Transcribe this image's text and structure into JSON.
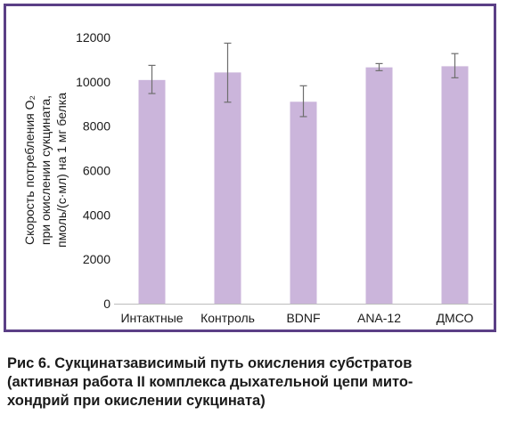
{
  "chart_data": {
    "type": "bar",
    "categories": [
      "Интактные",
      "Контроль",
      "BDNF",
      "ANA-12",
      "ДМСО"
    ],
    "values": [
      10080,
      10420,
      9100,
      10650,
      10700
    ],
    "error_low": [
      9470,
      9080,
      8430,
      10500,
      10180
    ],
    "error_high": [
      10740,
      11740,
      9820,
      10820,
      11270
    ],
    "ylim": [
      0,
      12000
    ],
    "yticks": [
      0,
      2000,
      4000,
      6000,
      8000,
      10000,
      12000
    ],
    "ytick_labels": [
      "0",
      "2000",
      "4000",
      "6000",
      "8000",
      "10000",
      "12000"
    ],
    "ylabel_lines": [
      "Скорость потребления O₂",
      "при окислении сукцината,",
      "пмоль/(с·мл) на 1 мг белка"
    ],
    "grid": false,
    "bar_color": "#cbb5db",
    "error_bar_color": "#6e6e6e",
    "axis_color": "#bdbdbd"
  },
  "caption": {
    "lines": [
      "Рис 6. Сукцинатзависимый путь окисления субстратов",
      "(активная работа II комплекса дыхательной цепи мито-",
      "хондрий при окислении сукцината)"
    ]
  },
  "colors": {
    "frame_border": "#5b3f86"
  }
}
